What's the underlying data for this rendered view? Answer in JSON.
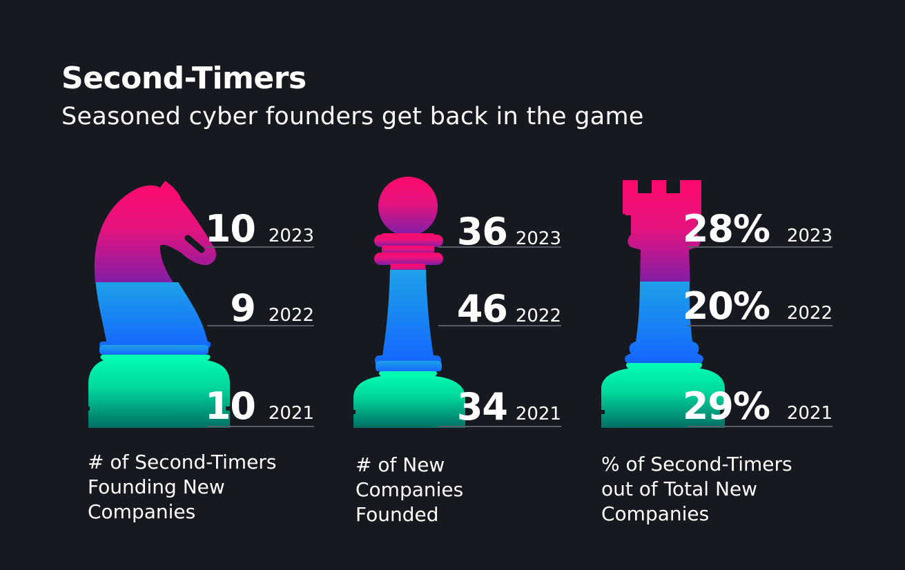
{
  "header": {
    "title": "Second-Timers",
    "subtitle": "Seasoned cyber founders get back in the game"
  },
  "colors": {
    "background": "#171921",
    "magenta": "#ff0a6c",
    "purple": "#7b1fa8",
    "blue": "#1fa3e8",
    "deep_blue": "#1466ff",
    "green": "#00ffb4",
    "teal_dark": "#006f63",
    "rule": "#5a5d66"
  },
  "chart_data": [
    {
      "type": "table",
      "piece": "knight",
      "caption": "# of Second-Timers\nFounding New\nCompanies",
      "rows": [
        {
          "year": "2023",
          "value": 10,
          "label": "10"
        },
        {
          "year": "2022",
          "value": 9,
          "label": "9"
        },
        {
          "year": "2021",
          "value": 10,
          "label": "10"
        }
      ]
    },
    {
      "type": "table",
      "piece": "pawn",
      "caption": "# of New\nCompanies\nFounded",
      "rows": [
        {
          "year": "2023",
          "value": 36,
          "label": "36"
        },
        {
          "year": "2022",
          "value": 46,
          "label": "46"
        },
        {
          "year": "2021",
          "value": 34,
          "label": "34"
        }
      ]
    },
    {
      "type": "table",
      "piece": "rook",
      "caption": "% of Second-Timers\nout of Total New\nCompanies",
      "rows": [
        {
          "year": "2023",
          "value": 28,
          "label": "28%"
        },
        {
          "year": "2022",
          "value": 20,
          "label": "20%"
        },
        {
          "year": "2021",
          "value": 29,
          "label": "29%"
        }
      ]
    }
  ]
}
